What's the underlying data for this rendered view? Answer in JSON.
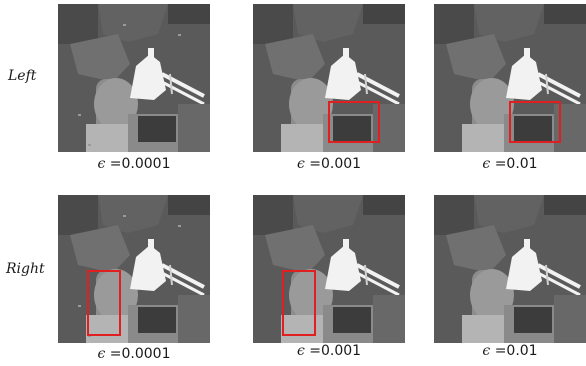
{
  "figure": {
    "rows": [
      {
        "label": "Left",
        "panels": [
          {
            "epsilon_symbol": "ϵ",
            "epsilon_value": "=0.0001",
            "highlight": "none"
          },
          {
            "epsilon_symbol": "ϵ",
            "epsilon_value": "=0.001",
            "highlight": "center-bottom"
          },
          {
            "epsilon_symbol": "ϵ",
            "epsilon_value": "=0.01",
            "highlight": "center-bottom"
          }
        ]
      },
      {
        "label": "Right",
        "panels": [
          {
            "epsilon_symbol": "ϵ",
            "epsilon_value": "=0.0001",
            "highlight": "left-middle"
          },
          {
            "epsilon_symbol": "ϵ",
            "epsilon_value": "=0.001",
            "highlight": "left-middle"
          },
          {
            "epsilon_symbol": "ϵ",
            "epsilon_value": "=0.01",
            "highlight": "none"
          }
        ]
      }
    ],
    "colors": {
      "highlight_box": "#e02020",
      "background_gray": "#5a5a5a",
      "foreground_light": "#b4b4b4",
      "object_white": "#f2f2f2"
    }
  }
}
